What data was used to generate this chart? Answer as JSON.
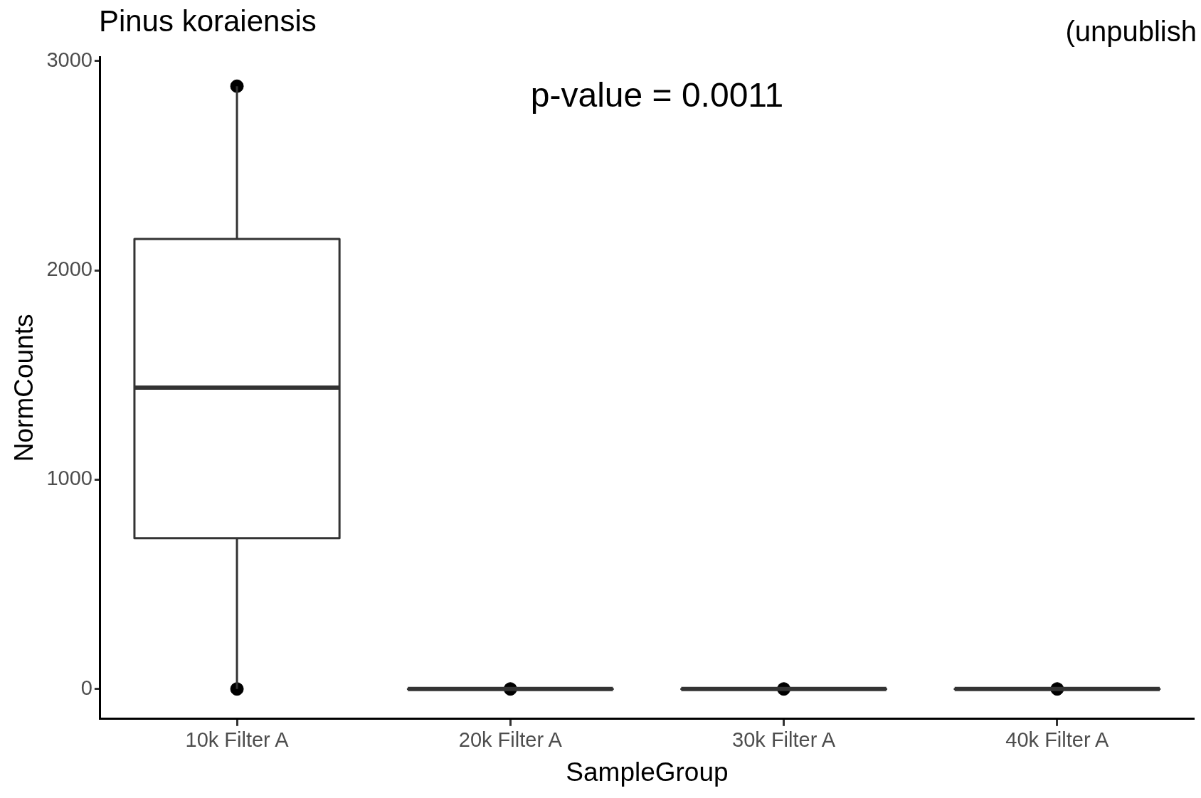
{
  "chart_data": {
    "type": "box",
    "title": "Pinus koraiensis",
    "xlabel": "SampleGroup",
    "ylabel": "NormCounts",
    "categories": [
      "10k Filter A",
      "20k Filter A",
      "30k Filter A",
      "40k Filter A"
    ],
    "boxes": [
      {
        "low": 0,
        "q1": 720,
        "median": 1440,
        "q3": 2150,
        "high": 2880
      },
      {
        "low": 0,
        "q1": 0,
        "median": 0,
        "q3": 0,
        "high": 0
      },
      {
        "low": 0,
        "q1": 0,
        "median": 0,
        "q3": 0,
        "high": 0
      },
      {
        "low": 0,
        "q1": 0,
        "median": 0,
        "q3": 0,
        "high": 0
      }
    ],
    "color": "#333333",
    "series": [
      {
        "type": "scatter",
        "color": "#000000",
        "x": [
          "10k Filter A",
          "10k Filter A",
          "20k Filter A",
          "30k Filter A",
          "40k Filter A"
        ],
        "values": [
          2880,
          0,
          0,
          0,
          0
        ]
      }
    ],
    "ylim": [
      -143,
      3020
    ],
    "yticks": [
      0,
      1000,
      2000,
      3000
    ],
    "grid": false,
    "legend": false,
    "marker": "circle",
    "annotations": [
      "p-value = 0.0011",
      "(unpublish"
    ]
  }
}
